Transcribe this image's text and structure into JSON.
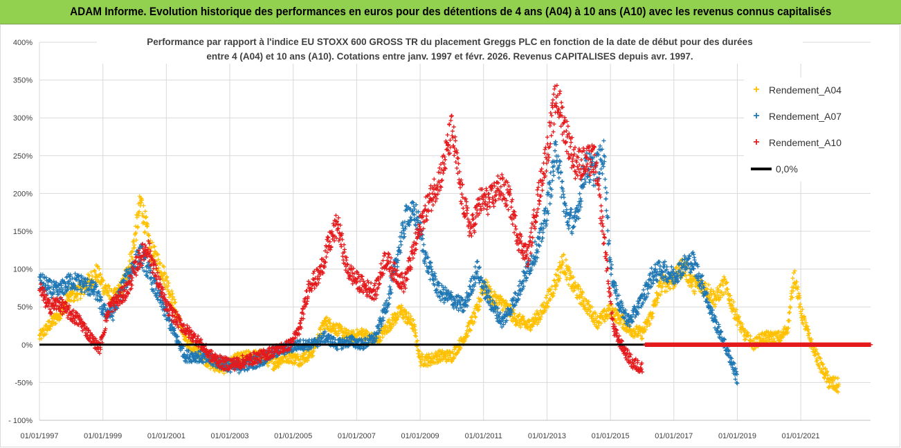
{
  "banner": {
    "title": "ADAM Informe. Evolution historique des performances en euros pour des détentions de 4 ans (A04) à 10 ans (A10) avec les revenus connus capitalisés"
  },
  "chart_data": {
    "type": "scatter",
    "title_line1": "Performance par rapport à l'indice EU STOXX 600 GROSS TR  du placement Greggs PLC en fonction de la date de début pour des durées",
    "title_line2": "entre 4 (A04) et 10 ans (A10). Cotations entre janv. 1997 et févr.  2026. Revenus CAPITALISES depuis avr. 1997.",
    "xlabel": "",
    "ylabel": "",
    "xlim": [
      1997.0,
      2023.2
    ],
    "ylim": [
      -100,
      400
    ],
    "y_ticks": [
      400,
      350,
      300,
      250,
      200,
      150,
      100,
      50,
      0,
      -50,
      -100
    ],
    "y_tick_labels": [
      "400%",
      "350%",
      "300%",
      "250%",
      "200%",
      "150%",
      "100%",
      "50%",
      "0%",
      "-50%",
      "- 100%"
    ],
    "x_ticks": [
      1997,
      1999,
      2001,
      2003,
      2005,
      2007,
      2009,
      2011,
      2013,
      2015,
      2017,
      2019,
      2021
    ],
    "x_tick_labels": [
      "01/01/1997",
      "01/01/1999",
      "01/01/2001",
      "01/01/2003",
      "01/01/2005",
      "01/01/2007",
      "01/01/2009",
      "01/01/2011",
      "01/01/2013",
      "01/01/2015",
      "01/01/2017",
      "01/01/2019",
      "01/01/2021"
    ],
    "reference_line": {
      "name": "0,0%",
      "value": 0,
      "color": "#000000"
    },
    "legend_position": "top-right",
    "series": [
      {
        "name": "Rendement_A04",
        "color": "#ffc000",
        "x": [
          1997.0,
          1997.3,
          1997.6,
          1998.0,
          1998.4,
          1998.8,
          1999.0,
          1999.3,
          1999.6,
          1999.9,
          2000.2,
          2000.5,
          2000.8,
          2001.0,
          2001.3,
          2001.6,
          2002.0,
          2002.4,
          2002.8,
          2003.2,
          2003.6,
          2004.0,
          2004.4,
          2004.8,
          2005.2,
          2005.6,
          2006.0,
          2006.4,
          2006.8,
          2007.2,
          2007.6,
          2008.0,
          2008.4,
          2008.8,
          2009.0,
          2009.3,
          2009.6,
          2010.0,
          2010.4,
          2010.8,
          2011.0,
          2011.3,
          2011.6,
          2012.0,
          2012.4,
          2012.8,
          2013.2,
          2013.5,
          2013.8,
          2014.2,
          2014.6,
          2015.0,
          2015.3,
          2015.6,
          2016.0,
          2016.3,
          2016.6,
          2017.0,
          2017.3,
          2017.6,
          2018.0,
          2018.3,
          2018.6,
          2018.9,
          2019.2,
          2019.5,
          2019.8,
          2020.1,
          2020.4,
          2020.6,
          2020.8,
          2021.0,
          2021.3,
          2021.6,
          2021.9,
          2022.2
        ],
        "y": [
          10,
          25,
          40,
          65,
          75,
          95,
          80,
          60,
          75,
          115,
          190,
          125,
          105,
          85,
          45,
          5,
          -10,
          -25,
          -30,
          -20,
          -15,
          -15,
          -25,
          -15,
          -20,
          -10,
          30,
          20,
          10,
          15,
          5,
          25,
          45,
          25,
          -20,
          -20,
          -15,
          -15,
          10,
          45,
          80,
          60,
          55,
          35,
          25,
          40,
          75,
          110,
          80,
          55,
          30,
          45,
          35,
          20,
          15,
          40,
          80,
          85,
          105,
          80,
          75,
          60,
          80,
          45,
          15,
          0,
          10,
          10,
          10,
          25,
          95,
          45,
          5,
          -25,
          -50,
          -55
        ]
      },
      {
        "name": "Rendement_A07",
        "color": "#1f77b4",
        "x": [
          1997.0,
          1997.3,
          1997.6,
          1998.0,
          1998.4,
          1998.8,
          1999.0,
          1999.3,
          1999.6,
          1999.9,
          2000.2,
          2000.5,
          2000.8,
          2001.0,
          2001.3,
          2001.6,
          2002.0,
          2002.4,
          2002.8,
          2003.2,
          2003.6,
          2004.0,
          2004.4,
          2004.8,
          2005.2,
          2005.6,
          2006.0,
          2006.4,
          2006.8,
          2007.2,
          2007.6,
          2008.0,
          2008.3,
          2008.6,
          2008.9,
          2009.2,
          2009.6,
          2010.0,
          2010.4,
          2010.8,
          2011.0,
          2011.3,
          2011.6,
          2012.0,
          2012.4,
          2012.8,
          2013.0,
          2013.3,
          2013.6,
          2013.9,
          2014.2,
          2014.5,
          2014.8,
          2015.0,
          2015.3,
          2015.6,
          2016.0,
          2016.3,
          2016.6,
          2017.0,
          2017.3,
          2017.6,
          2017.9,
          2018.2,
          2018.5,
          2018.8,
          2019.0
        ],
        "y": [
          85,
          75,
          70,
          85,
          80,
          70,
          45,
          40,
          75,
          100,
          120,
          90,
          60,
          40,
          10,
          -15,
          -15,
          -20,
          -25,
          -30,
          -25,
          -20,
          -10,
          -5,
          0,
          0,
          10,
          0,
          5,
          0,
          10,
          60,
          120,
          175,
          170,
          110,
          70,
          60,
          50,
          100,
          75,
          50,
          30,
          60,
          100,
          140,
          180,
          260,
          170,
          160,
          235,
          230,
          250,
          100,
          50,
          30,
          60,
          90,
          100,
          90,
          105,
          110,
          80,
          40,
          10,
          -20,
          -45
        ]
      },
      {
        "name": "Rendement_A10",
        "color": "#e41a1c",
        "x": [
          1997.0,
          1997.3,
          1997.6,
          1998.0,
          1998.3,
          1998.6,
          1998.9,
          1999.2,
          1999.5,
          1999.8,
          2000.1,
          2000.4,
          2000.7,
          2001.0,
          2001.3,
          2001.6,
          2002.0,
          2002.4,
          2002.8,
          2003.2,
          2003.6,
          2004.0,
          2004.3,
          2004.6,
          2004.9,
          2005.2,
          2005.5,
          2005.8,
          2006.1,
          2006.4,
          2006.7,
          2007.0,
          2007.3,
          2007.6,
          2007.9,
          2008.2,
          2008.5,
          2008.8,
          2009.1,
          2009.4,
          2009.7,
          2010.0,
          2010.3,
          2010.6,
          2010.9,
          2011.2,
          2011.5,
          2011.8,
          2012.1,
          2012.4,
          2012.7,
          2013.0,
          2013.3,
          2013.6,
          2013.9,
          2014.2,
          2014.5,
          2014.8,
          2015.1,
          2015.4,
          2015.7,
          2016.0
        ],
        "y": [
          75,
          50,
          55,
          40,
          30,
          10,
          -5,
          50,
          60,
          75,
          110,
          130,
          90,
          50,
          35,
          20,
          5,
          -15,
          -25,
          -25,
          -20,
          -15,
          -10,
          -5,
          0,
          20,
          80,
          90,
          130,
          160,
          100,
          85,
          75,
          70,
          115,
          95,
          80,
          125,
          170,
          200,
          230,
          285,
          200,
          150,
          190,
          190,
          210,
          195,
          140,
          115,
          190,
          255,
          330,
          280,
          240,
          240,
          245,
          140,
          20,
          -5,
          -25,
          -30
        ]
      }
    ],
    "flat_segment": {
      "series": "Rendement_A10",
      "x_from": 2016.1,
      "x_to": 2023.2,
      "value": 0
    }
  }
}
